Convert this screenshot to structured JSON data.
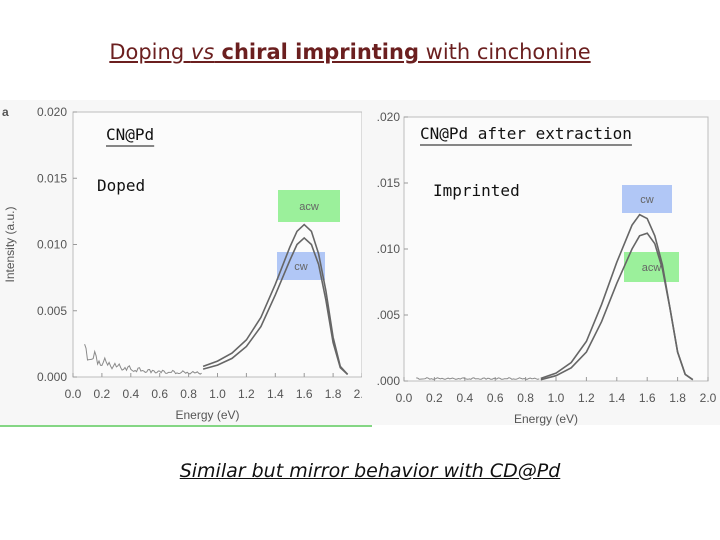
{
  "slide": {
    "title_pre": "Doping ",
    "title_vs": "vs",
    "title_bold": " chiral imprinting",
    "title_post": " with cinchonine",
    "caption": "Similar but mirror behavior with CD@Pd"
  },
  "chart_data": [
    {
      "type": "line",
      "panel_letter": "a",
      "label_top": "CN@Pd",
      "label_state": "Doped",
      "xlabel": "Energy (eV)",
      "ylabel": "Intensity (a.u.)",
      "xlim": [
        0.0,
        2.0
      ],
      "ylim": [
        0.0,
        0.02
      ],
      "xticks": [
        "0.0",
        "0.2",
        "0.4",
        "0.6",
        "0.8",
        "1.0",
        "1.2",
        "1.4",
        "1.6",
        "1.8",
        "2.0"
      ],
      "yticks": [
        "0.000",
        "0.005",
        "0.010",
        "0.015",
        "0.020"
      ],
      "series": [
        {
          "name": "acw",
          "color": "#90ee90",
          "x": [
            0.9,
            1.0,
            1.1,
            1.2,
            1.3,
            1.4,
            1.5,
            1.55,
            1.6,
            1.65,
            1.7,
            1.75,
            1.8,
            1.85,
            1.9
          ],
          "y": [
            0.0008,
            0.0012,
            0.0018,
            0.0028,
            0.0045,
            0.007,
            0.0098,
            0.011,
            0.0115,
            0.011,
            0.0093,
            0.0065,
            0.003,
            0.0008,
            0.0002
          ]
        },
        {
          "name": "cw",
          "color": "#a9c1f5",
          "x": [
            0.9,
            1.0,
            1.1,
            1.2,
            1.3,
            1.4,
            1.5,
            1.55,
            1.6,
            1.65,
            1.7,
            1.75,
            1.8,
            1.85,
            1.9
          ],
          "y": [
            0.0006,
            0.0009,
            0.0014,
            0.0023,
            0.0038,
            0.0062,
            0.0088,
            0.01,
            0.0105,
            0.01,
            0.0085,
            0.0058,
            0.0026,
            0.0007,
            0.0002
          ]
        }
      ]
    },
    {
      "type": "line",
      "label_top": "CN@Pd after extraction",
      "label_state": "Imprinted",
      "xlabel": "Energy (eV)",
      "xlim": [
        0.0,
        2.0
      ],
      "ylim": [
        0.0,
        0.02
      ],
      "xticks": [
        "0.0",
        "0.2",
        "0.4",
        "0.6",
        "0.8",
        "1.0",
        "1.2",
        "1.4",
        "1.6",
        "1.8",
        "2.0"
      ],
      "yticks": [
        ".000",
        ".005",
        ".010",
        ".015",
        ".020"
      ],
      "series": [
        {
          "name": "cw",
          "color": "#a9c1f5",
          "x": [
            0.9,
            1.0,
            1.1,
            1.2,
            1.3,
            1.4,
            1.5,
            1.55,
            1.6,
            1.65,
            1.7,
            1.75,
            1.8,
            1.85,
            1.9
          ],
          "y": [
            0.0002,
            0.0006,
            0.0014,
            0.003,
            0.0058,
            0.009,
            0.0118,
            0.0126,
            0.0123,
            0.011,
            0.0088,
            0.0055,
            0.0022,
            0.0005,
            0.0001
          ]
        },
        {
          "name": "acw",
          "color": "#90ee90",
          "x": [
            0.9,
            1.0,
            1.1,
            1.2,
            1.3,
            1.4,
            1.5,
            1.55,
            1.6,
            1.65,
            1.7,
            1.75,
            1.8,
            1.85,
            1.9
          ],
          "y": [
            0.0001,
            0.0004,
            0.001,
            0.0022,
            0.0045,
            0.0074,
            0.01,
            0.011,
            0.0112,
            0.0104,
            0.0085,
            0.0055,
            0.0022,
            0.0005,
            0.0001
          ]
        }
      ]
    }
  ]
}
